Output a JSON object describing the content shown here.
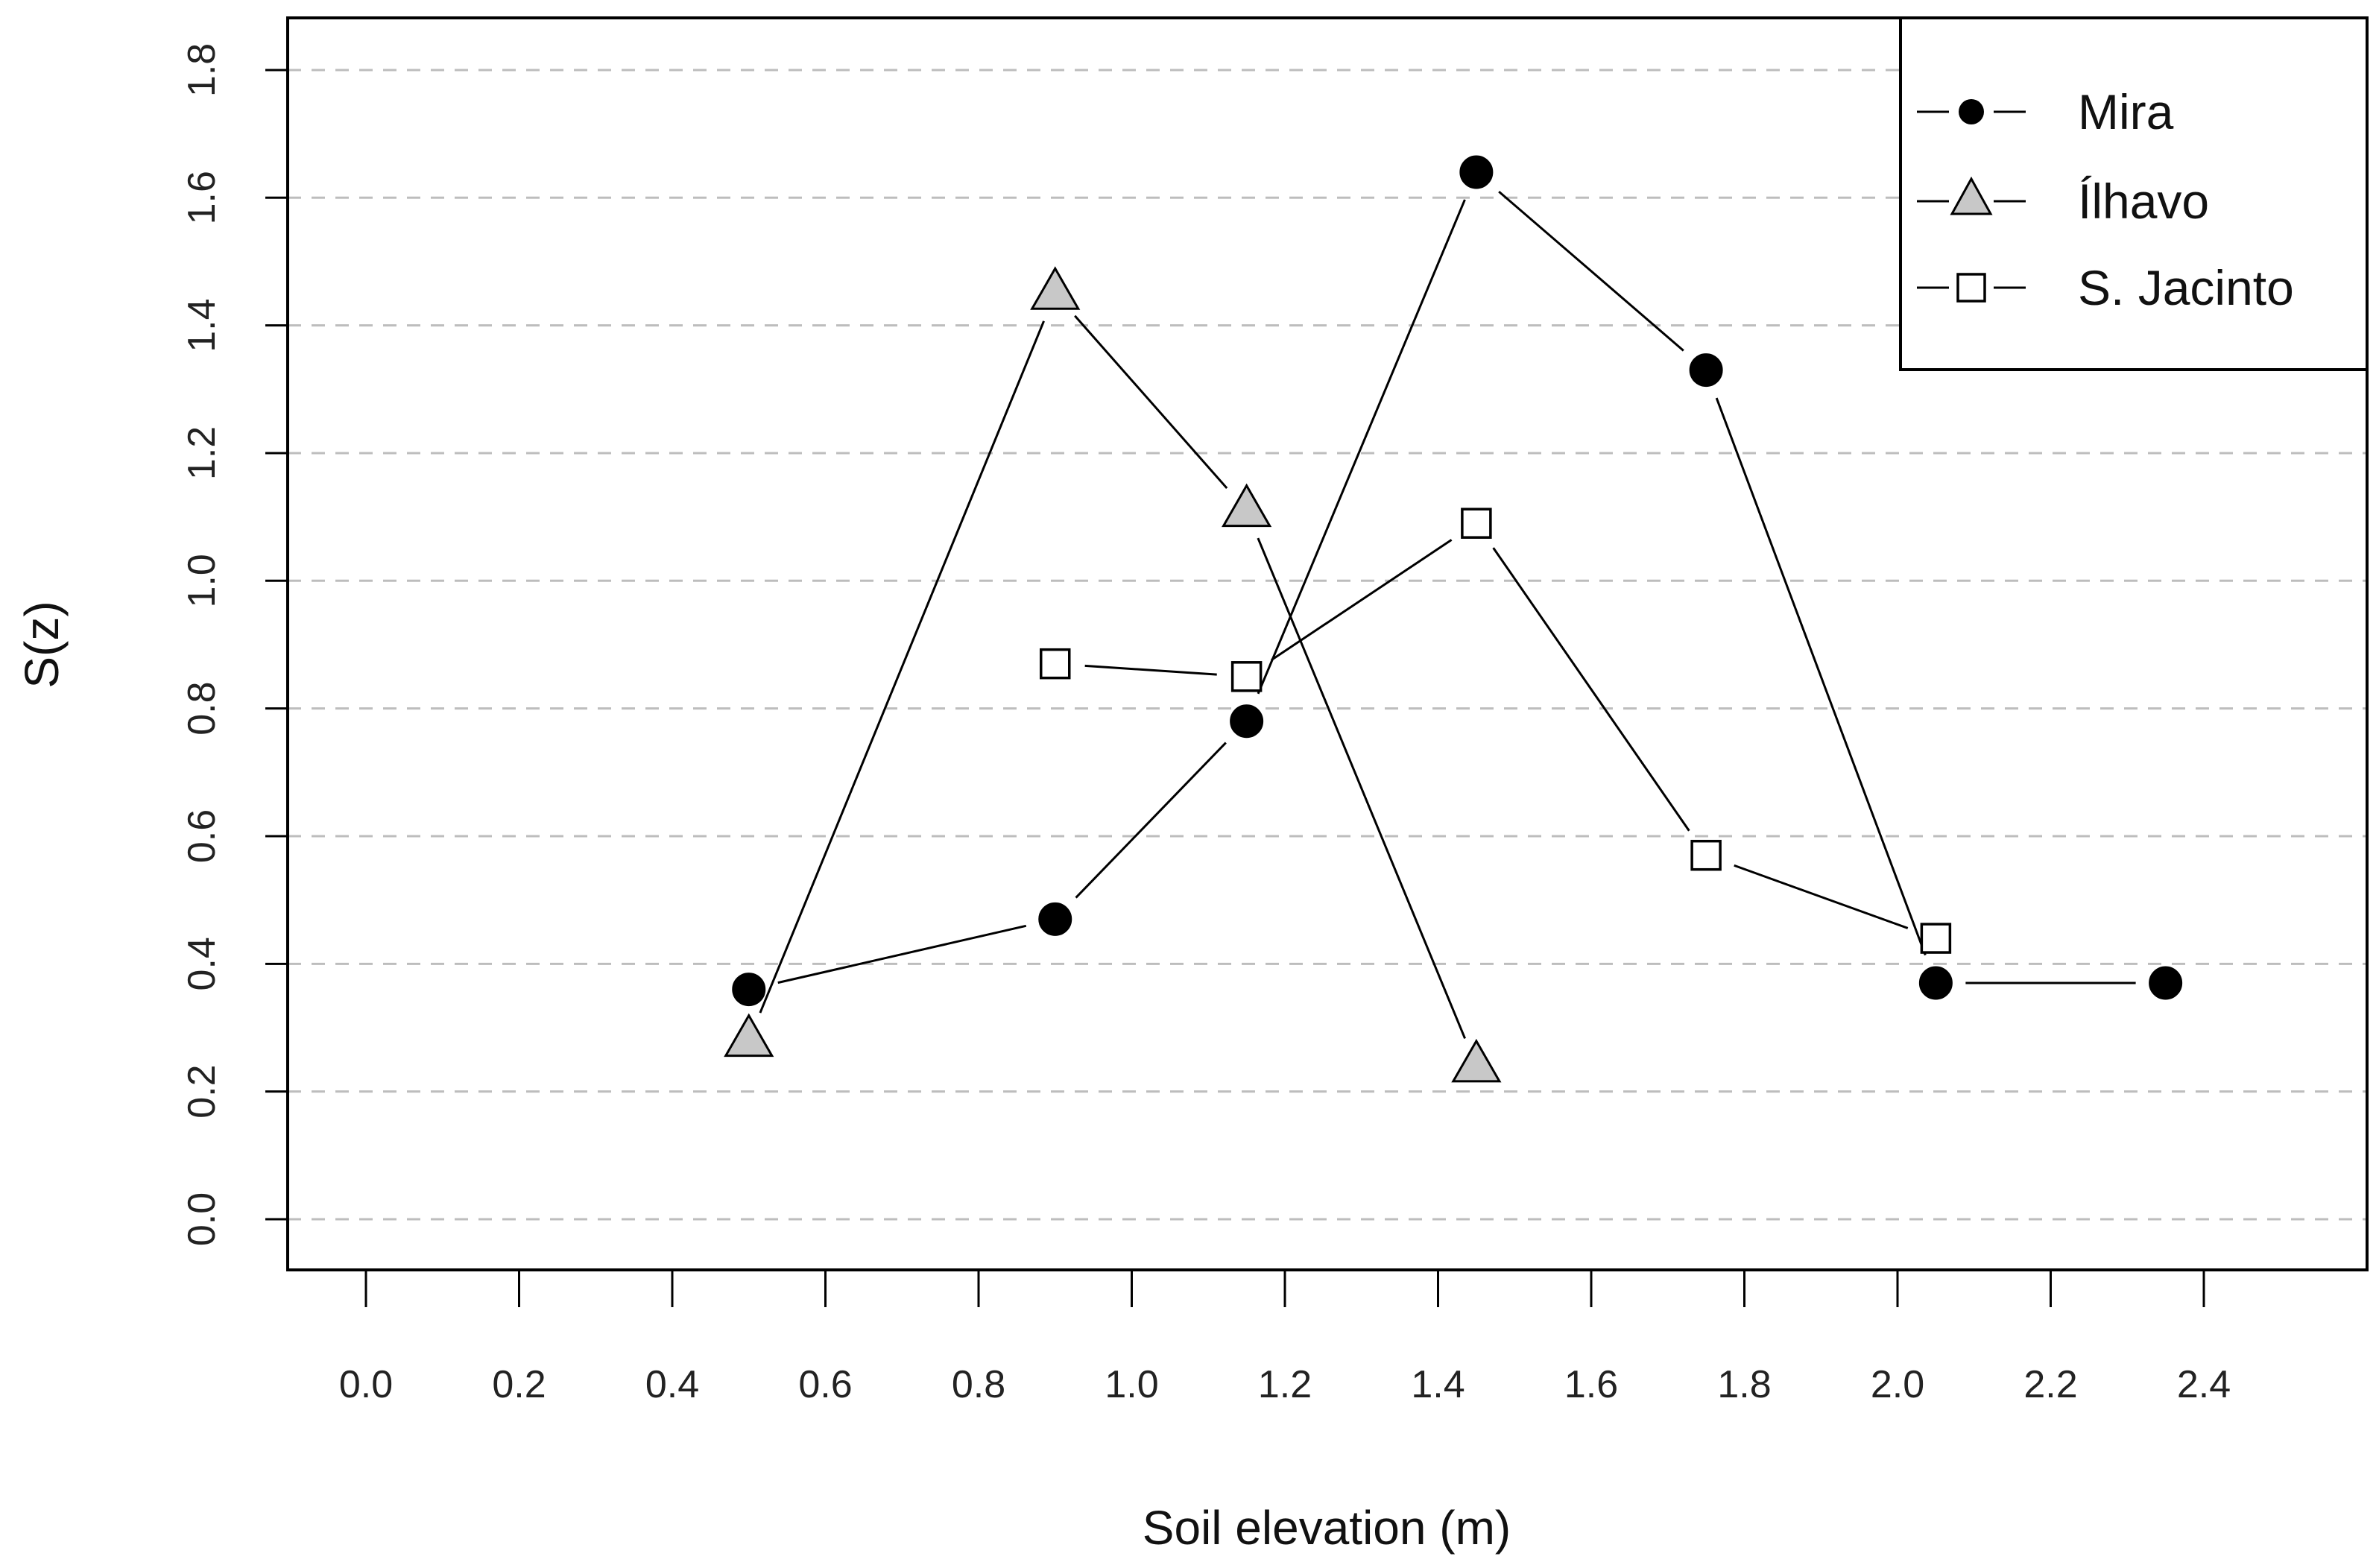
{
  "chart_data": {
    "type": "line",
    "title": "",
    "xlabel": "Soil elevation (m)",
    "ylabel": "S(z)",
    "xlim": [
      -0.1,
      2.6
    ],
    "ylim": [
      -0.07,
      1.88
    ],
    "x_ticks": [
      "0.0",
      "0.2",
      "0.4",
      "0.6",
      "0.8",
      "1.0",
      "1.2",
      "1.4",
      "1.6",
      "1.8",
      "2.0",
      "2.2",
      "2.4"
    ],
    "y_ticks": [
      "0.0",
      "0.2",
      "0.4",
      "0.6",
      "0.8",
      "1.0",
      "1.2",
      "1.4",
      "1.6",
      "1.8"
    ],
    "grid": "horizontal dashed",
    "legend_position": "top-right",
    "series": [
      {
        "name": "Mira",
        "marker": "filled-circle",
        "fill": "#000000",
        "x": [
          0.5,
          0.9,
          1.15,
          1.45,
          1.75,
          2.05,
          2.35
        ],
        "y": [
          0.36,
          0.47,
          0.78,
          1.64,
          1.33,
          0.37,
          0.37
        ]
      },
      {
        "name": "Ílhavo",
        "marker": "triangle",
        "fill": "#c8c8c8",
        "x": [
          0.5,
          0.9,
          1.15,
          1.45
        ],
        "y": [
          0.28,
          1.45,
          1.11,
          0.24
        ]
      },
      {
        "name": "S. Jacinto",
        "marker": "open-square",
        "fill": "#ffffff",
        "x": [
          0.9,
          1.15,
          1.45,
          1.75,
          2.05
        ],
        "y": [
          0.87,
          0.85,
          1.09,
          0.57,
          0.44
        ]
      }
    ]
  }
}
